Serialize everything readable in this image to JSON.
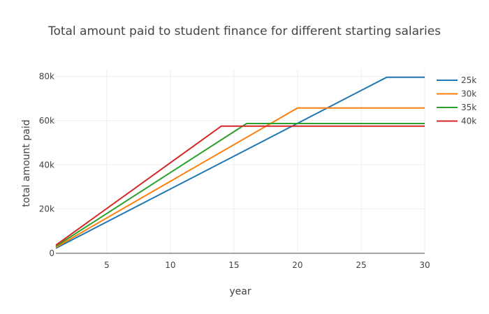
{
  "chart_data": {
    "type": "line",
    "title": "Total amount paid to student finance for different starting salaries",
    "xlabel": "year",
    "ylabel": "total amount paid",
    "xlim": [
      1,
      30
    ],
    "ylim": [
      0,
      83000
    ],
    "xticks": [
      {
        "value": 5,
        "label": "5"
      },
      {
        "value": 10,
        "label": "10"
      },
      {
        "value": 15,
        "label": "15"
      },
      {
        "value": 20,
        "label": "20"
      },
      {
        "value": 25,
        "label": "25"
      },
      {
        "value": 30,
        "label": "30"
      }
    ],
    "yticks": [
      {
        "value": 0,
        "label": "0"
      },
      {
        "value": 20000,
        "label": "20k"
      },
      {
        "value": 40000,
        "label": "40k"
      },
      {
        "value": 60000,
        "label": "60k"
      },
      {
        "value": 80000,
        "label": "80k"
      }
    ],
    "grid": true,
    "legend": "right",
    "series": [
      {
        "name": "25k",
        "color": "#1f77b4",
        "x": [
          1,
          27,
          30
        ],
        "y": [
          2300,
          79600,
          79600
        ]
      },
      {
        "name": "30k",
        "color": "#ff7f0e",
        "x": [
          1,
          20,
          30
        ],
        "y": [
          2700,
          65700,
          65700
        ]
      },
      {
        "name": "35k",
        "color": "#2ca02c",
        "x": [
          1,
          16,
          30
        ],
        "y": [
          3200,
          58700,
          58700
        ]
      },
      {
        "name": "40k",
        "color": "#d62728",
        "x": [
          1,
          14,
          30
        ],
        "y": [
          3700,
          57500,
          57500
        ]
      }
    ]
  }
}
